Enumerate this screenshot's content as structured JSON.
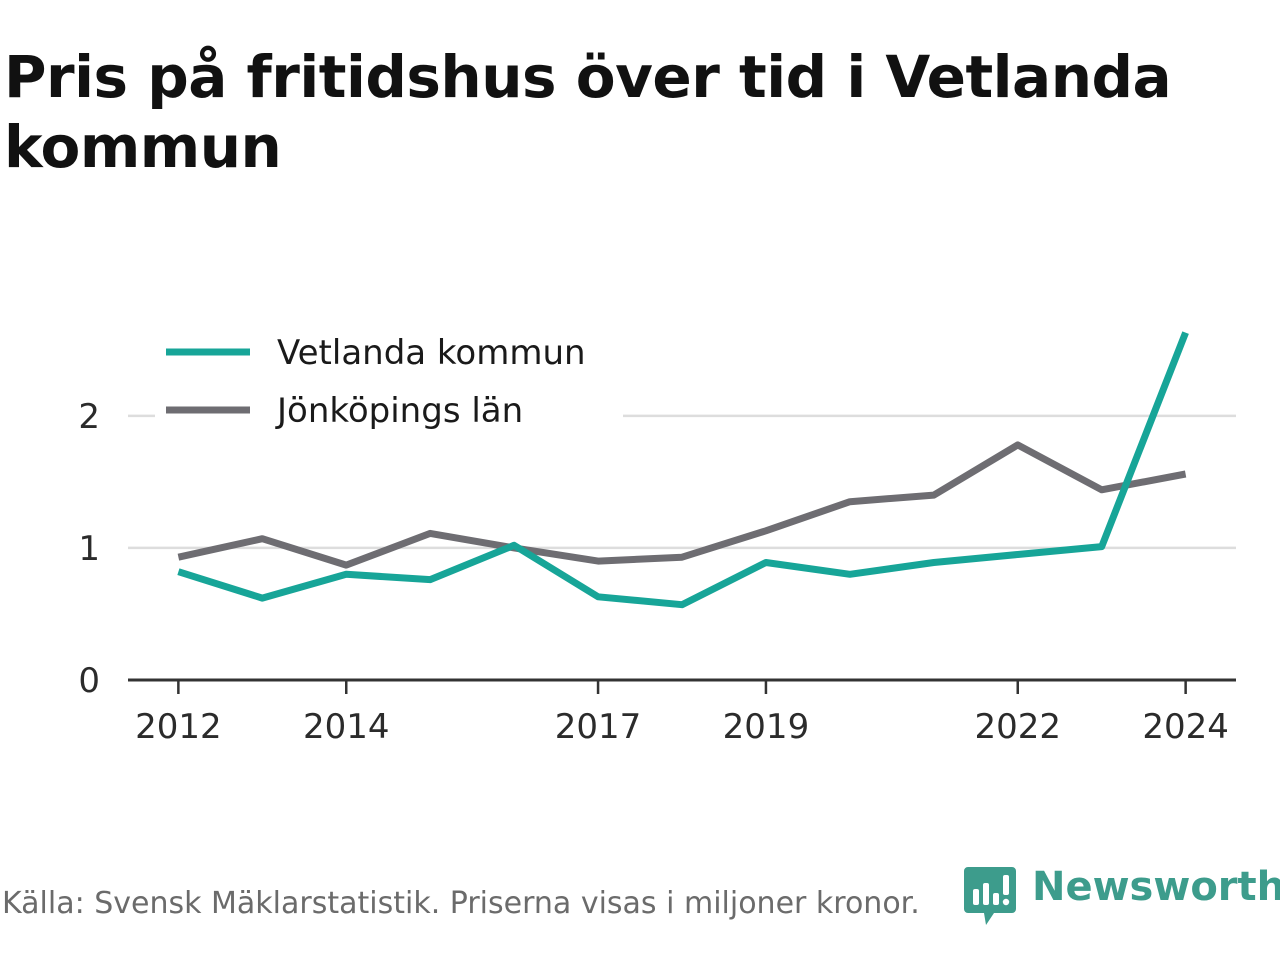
{
  "title": "Pris på fritidshus över tid i Vetlanda kommun",
  "footer": {
    "source_text": "Källa: Svensk Mäklarstatistik. Priserna visas i miljoner kronor.",
    "brand_name": "Newsworthy",
    "brand_icon": "newsworthy-logo-icon"
  },
  "colors": {
    "vetlanda": "#17a598",
    "jonkoping": "#6e6d72",
    "grid": "#dddddd",
    "axis": "#333333",
    "brand": "#3d9c8c"
  },
  "chart_data": {
    "type": "line",
    "x": [
      2012,
      2013,
      2014,
      2015,
      2016,
      2017,
      2018,
      2019,
      2020,
      2021,
      2022,
      2023,
      2024
    ],
    "x_tick_labels": [
      "2012",
      "2014",
      "2017",
      "2019",
      "2022",
      "2024"
    ],
    "y_ticks": [
      0,
      1,
      2
    ],
    "ylim": [
      0,
      2.65
    ],
    "xlim": [
      2011.4,
      2024.6
    ],
    "grid": true,
    "legend_position": "top-left",
    "title": "Pris på fritidshus över tid i Vetlanda kommun",
    "xlabel": "",
    "ylabel": "",
    "series": [
      {
        "name": "Vetlanda kommun",
        "color": "#17a598",
        "values": [
          0.82,
          0.62,
          0.8,
          0.76,
          1.02,
          0.63,
          0.57,
          0.89,
          0.8,
          0.89,
          0.95,
          1.01,
          2.63
        ]
      },
      {
        "name": "Jönköpings län",
        "color": "#6e6d72",
        "values": [
          0.93,
          1.07,
          0.87,
          1.11,
          1.0,
          0.9,
          0.93,
          1.13,
          1.35,
          1.4,
          1.78,
          1.44,
          1.56
        ]
      }
    ]
  }
}
